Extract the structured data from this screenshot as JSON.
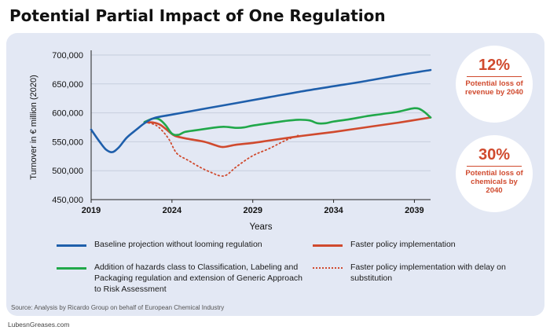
{
  "title": "Potential Partial Impact of One Regulation",
  "colors": {
    "baseline": "#1f5fab",
    "hazards": "#21a84a",
    "faster": "#d04a2e",
    "accent": "#d04a2e",
    "panel": "#e3e8f4"
  },
  "chart_data": {
    "type": "line",
    "title": "Potential Partial Impact of One Regulation",
    "xlabel": "Years",
    "ylabel": "Turnover in € million (2020)",
    "xlim": [
      2019,
      2040
    ],
    "ylim": [
      450000,
      700000
    ],
    "x_ticks": [
      2019,
      2024,
      2029,
      2034,
      2039
    ],
    "x_tick_labels": [
      "2019",
      "2024",
      "2029",
      "2034",
      "2039"
    ],
    "y_ticks": [
      450000,
      500000,
      550000,
      600000,
      650000,
      700000
    ],
    "y_tick_labels": [
      "450,000",
      "500,000",
      "550,000",
      "600,000",
      "650,000",
      "700,000"
    ],
    "grid": "horizontal",
    "legend_position": "bottom",
    "series": [
      {
        "key": "baseline",
        "name": "Baseline projection without looming regulation",
        "color": "#1f5fab",
        "dash": "solid",
        "x": [
          2019,
          2019.5,
          2019.9,
          2020.3,
          2020.7,
          2021.2,
          2021.8,
          2022.3,
          2022.9,
          2024,
          2026,
          2028,
          2030,
          2032,
          2034,
          2036,
          2038,
          2040
        ],
        "y": [
          571000,
          551000,
          537000,
          532000,
          540000,
          557000,
          571000,
          582000,
          591000,
          597000,
          607000,
          617000,
          627000,
          637000,
          646000,
          655000,
          665000,
          674000
        ]
      },
      {
        "key": "hazards",
        "name": "Addition of hazards class to Classification, Labeling and Packaging regulation and extension of Generic Approach to Risk Assessment",
        "color": "#21a84a",
        "dash": "solid",
        "x": [
          2022.3,
          2022.8,
          2023.2,
          2023.6,
          2024,
          2024.4,
          2024.8,
          2025.5,
          2026.5,
          2027.2,
          2028,
          2028.5,
          2029,
          2030,
          2031,
          2031.8,
          2032.5,
          2033,
          2033.5,
          2034,
          2035,
          2036,
          2037,
          2038,
          2039,
          2039.5,
          2040
        ],
        "y": [
          584000,
          590000,
          589000,
          579000,
          564000,
          562000,
          567000,
          570000,
          574000,
          576000,
          574000,
          575000,
          578000,
          582000,
          586000,
          588000,
          587000,
          582000,
          582000,
          585000,
          589000,
          594000,
          598000,
          602000,
          608000,
          604000,
          592000
        ]
      },
      {
        "key": "faster",
        "name": "Faster policy implementation",
        "color": "#d04a2e",
        "dash": "solid",
        "x": [
          2022.3,
          2022.9,
          2023.3,
          2023.8,
          2024.2,
          2025,
          2026,
          2026.8,
          2027.2,
          2028,
          2029,
          2030,
          2032,
          2034,
          2036,
          2038,
          2040
        ],
        "y": [
          584000,
          583000,
          579000,
          568000,
          560000,
          555000,
          550000,
          543000,
          541000,
          545000,
          548000,
          552000,
          560000,
          567000,
          575000,
          583000,
          592000
        ]
      },
      {
        "key": "faster_delay",
        "name": "Faster policy implementation with delay on substitution",
        "color": "#d04a2e",
        "dash": "dotted",
        "x": [
          2022.3,
          2022.9,
          2023.3,
          2023.8,
          2024.3,
          2025,
          2025.8,
          2026.5,
          2027,
          2027.4,
          2028,
          2029,
          2030,
          2031,
          2031.8
        ],
        "y": [
          584000,
          580000,
          572000,
          555000,
          530000,
          518000,
          505000,
          496000,
          491000,
          493000,
          507000,
          526000,
          538000,
          552000,
          561000
        ]
      }
    ]
  },
  "legend": [
    {
      "key": "baseline",
      "label": "Baseline projection without looming regulation"
    },
    {
      "key": "faster",
      "label": "Faster policy implementation"
    },
    {
      "key": "hazards",
      "label": "Addition of hazards class to Classification, Labeling and Packaging regulation and extension of Generic Approach to Risk Assessment"
    },
    {
      "key": "faster_delay",
      "label": "Faster policy implementation with delay on substitution"
    }
  ],
  "callouts": [
    {
      "value": "12%",
      "text": "Potential loss of revenue by 2040"
    },
    {
      "value": "30%",
      "text": "Potential loss of chemicals by 2040"
    }
  ],
  "source": "Source: Analysis by Ricardo Group on behalf of European Chemical Industry",
  "footer": "LubesnGreases.com"
}
